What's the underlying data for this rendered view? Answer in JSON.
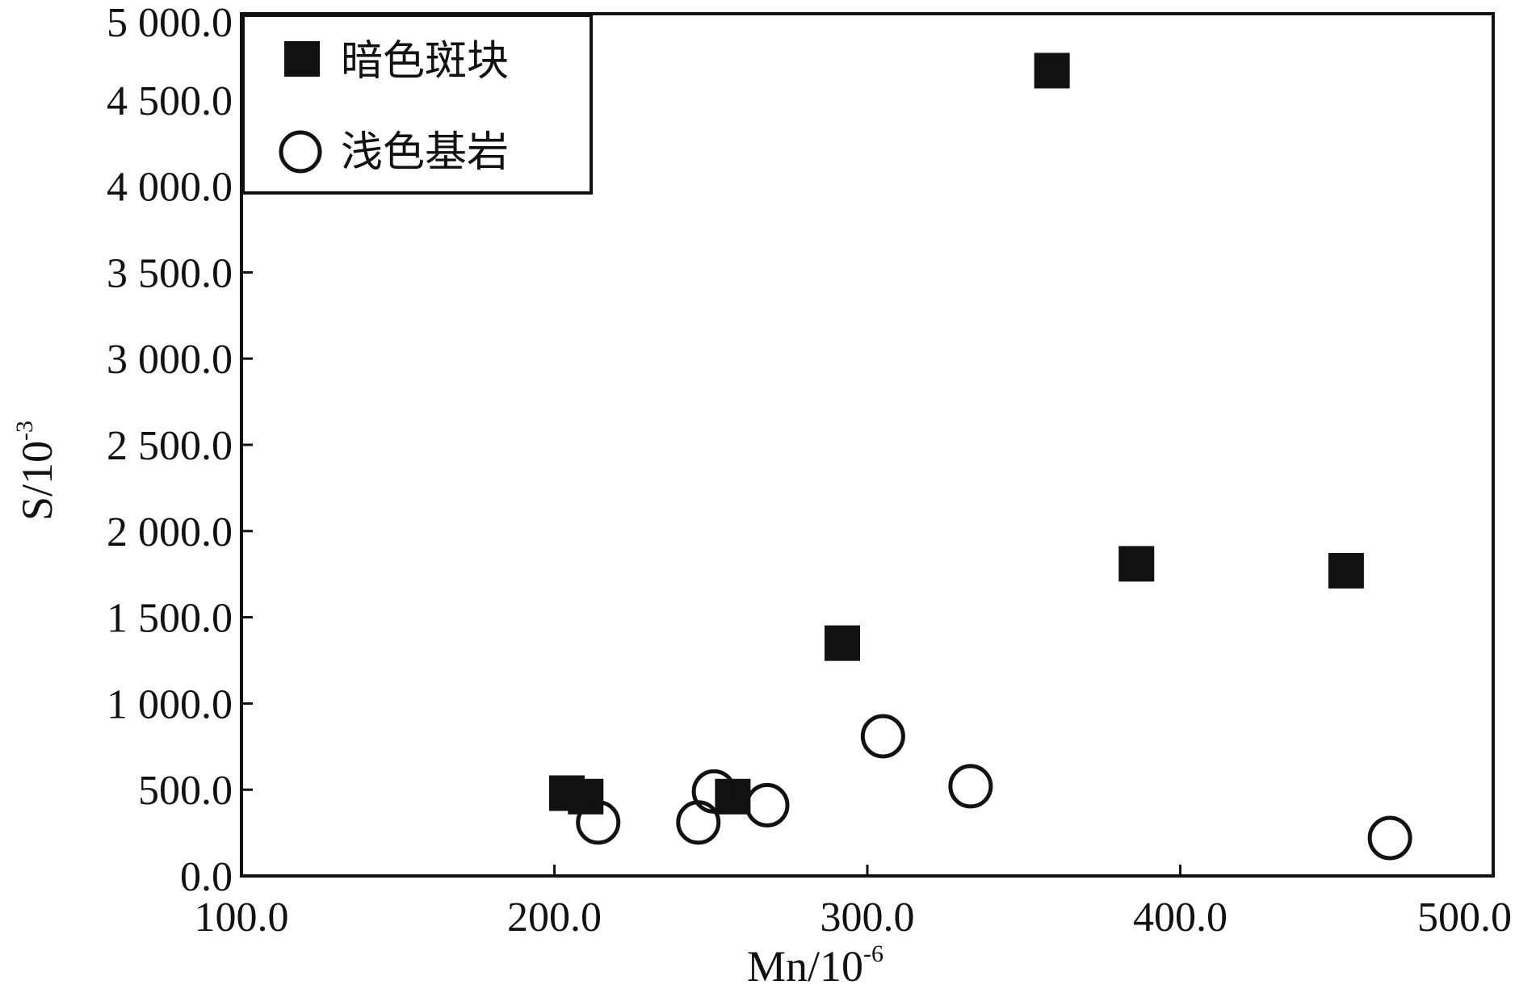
{
  "chart_data": {
    "type": "scatter",
    "xlabel": "Mn/10",
    "xlabel_exponent": "-6",
    "ylabel": "S/10",
    "ylabel_exponent": "-3",
    "xlim": [
      100,
      500
    ],
    "ylim": [
      0,
      5000
    ],
    "xticks": [
      "100.0",
      "200.0",
      "300.0",
      "400.0",
      "500.0"
    ],
    "yticks": [
      "0.0",
      "500.0",
      "1 000.0",
      "1 500.0",
      "2 000.0",
      "2 500.0",
      "3 000.0",
      "3 500.0",
      "4 000.0",
      "4 500.0",
      "5 000.0"
    ],
    "xtick_values": [
      100,
      200,
      300,
      400,
      500
    ],
    "ytick_values": [
      0,
      500,
      1000,
      1500,
      2000,
      2500,
      3000,
      3500,
      4000,
      4500,
      5000
    ],
    "grid": false,
    "legend_position": "top-left",
    "series": [
      {
        "name": "暗色斑块",
        "marker": "filled-square",
        "color": "#111111",
        "points": [
          {
            "x": 204,
            "y": 480
          },
          {
            "x": 210,
            "y": 460
          },
          {
            "x": 257,
            "y": 460
          },
          {
            "x": 292,
            "y": 1350
          },
          {
            "x": 359,
            "y": 4670
          },
          {
            "x": 386,
            "y": 1810
          },
          {
            "x": 453,
            "y": 1770
          }
        ]
      },
      {
        "name": "浅色基岩",
        "marker": "open-circle",
        "color": "#111111",
        "points": [
          {
            "x": 214,
            "y": 310
          },
          {
            "x": 246,
            "y": 310
          },
          {
            "x": 251,
            "y": 490
          },
          {
            "x": 268,
            "y": 410
          },
          {
            "x": 305,
            "y": 810
          },
          {
            "x": 333,
            "y": 520
          },
          {
            "x": 467,
            "y": 220
          }
        ]
      }
    ]
  }
}
